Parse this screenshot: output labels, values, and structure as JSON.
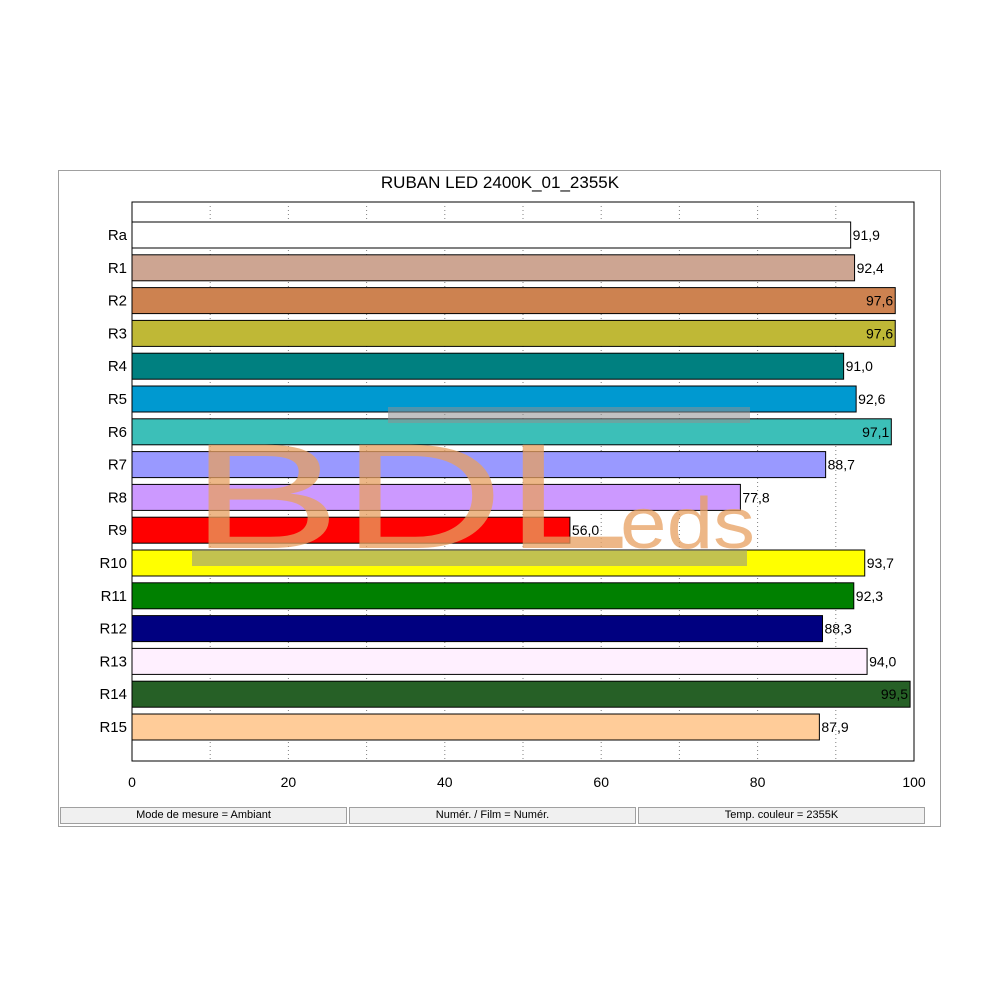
{
  "chart_data": {
    "type": "bar",
    "orientation": "horizontal",
    "title": "RUBAN LED 2400K_01_2355K",
    "xlabel": "",
    "ylabel": "",
    "xlim": [
      0,
      100
    ],
    "x_ticks": [
      "0",
      "20",
      "40",
      "60",
      "80",
      "100"
    ],
    "grid": "vertical dotted",
    "categories": [
      "Ra",
      "R1",
      "R2",
      "R3",
      "R4",
      "R5",
      "R6",
      "R7",
      "R8",
      "R9",
      "R10",
      "R11",
      "R12",
      "R13",
      "R14",
      "R15"
    ],
    "values": [
      91.9,
      92.4,
      97.6,
      97.6,
      91.0,
      92.6,
      97.1,
      88.7,
      77.8,
      56.0,
      93.7,
      92.3,
      88.3,
      94.0,
      99.5,
      87.9
    ],
    "value_labels": [
      "91,9",
      "92,4",
      "97,6",
      "97,6",
      "91,0",
      "92,6",
      "97,1",
      "88,7",
      "77,8",
      "56,0",
      "93,7",
      "92,3",
      "88,3",
      "94,0",
      "99,5",
      "87,9"
    ],
    "bar_colors": [
      "#ffffff",
      "#cda592",
      "#cd8250",
      "#bfb836",
      "#008080",
      "#0099d0",
      "#3cbfb8",
      "#9999ff",
      "#cc99ff",
      "#ff0000",
      "#ffff00",
      "#008000",
      "#000080",
      "#fff0ff",
      "#266026",
      "#ffcc99"
    ]
  },
  "watermark": {
    "main": "BDL",
    "suffix": "eds",
    "color": "#e8a060"
  },
  "status": {
    "mode": "Mode de mesure = Ambiant",
    "numer": "Numér. / Film = Numér.",
    "temp": "Temp. couleur = 2355K"
  }
}
